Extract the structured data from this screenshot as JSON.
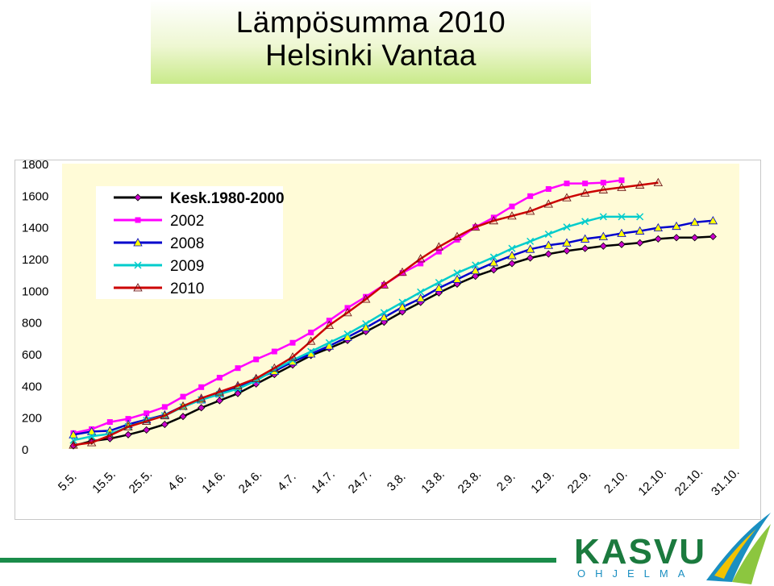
{
  "title": {
    "line1": "Lämpösumma 2010",
    "line2": "Helsinki Vantaa"
  },
  "logo": {
    "word": "KASVU",
    "sub": "OHJELMA"
  },
  "colors": {
    "plot_bg": "#fffbd7",
    "title_gradient": "#c9ea8a",
    "brand_green": "#1b7a3e",
    "brand_blue": "#1a8fc1"
  },
  "chart_data": {
    "type": "line",
    "categories": [
      "5.5.",
      "10.5.",
      "15.5.",
      "20.5.",
      "25.5.",
      "30.5.",
      "4.6.",
      "9.6.",
      "14.6.",
      "19.6.",
      "24.6.",
      "29.6.",
      "4.7.",
      "9.7.",
      "14.7.",
      "19.7.",
      "24.7.",
      "29.7.",
      "3.8.",
      "8.8.",
      "13.8.",
      "18.8.",
      "23.8.",
      "28.8.",
      "2.9.",
      "7.9.",
      "12.9.",
      "17.9.",
      "22.9.",
      "27.9.",
      "2.10.",
      "7.10.",
      "12.10.",
      "17.10.",
      "22.10.",
      "27.10.",
      "31.10."
    ],
    "tick_labels": [
      "5.5.",
      "15.5.",
      "25.5.",
      "4.6.",
      "14.6.",
      "24.6.",
      "4.7.",
      "14.7.",
      "24.7.",
      "3.8.",
      "13.8.",
      "23.8.",
      "2.9.",
      "12.9.",
      "22.9.",
      "2.10.",
      "12.10.",
      "22.10.",
      "31.10."
    ],
    "ylim": [
      0,
      1800
    ],
    "yticks": [
      0,
      200,
      400,
      600,
      800,
      1000,
      1200,
      1400,
      1600,
      1800
    ],
    "grid": false,
    "legend_position": "top-left",
    "series": [
      {
        "name": "Kesk.1980-2000",
        "color": "#000000",
        "marker": "diamond",
        "marker_color": "#cc00cc",
        "values": [
          20,
          50,
          65,
          90,
          120,
          155,
          205,
          260,
          305,
          350,
          410,
          470,
          530,
          590,
          635,
          685,
          740,
          800,
          865,
          925,
          985,
          1040,
          1090,
          1130,
          1170,
          1205,
          1230,
          1250,
          1265,
          1280,
          1290,
          1300,
          1325,
          1333,
          1333,
          1340,
          null
        ]
      },
      {
        "name": "2002",
        "color": "#ff00ff",
        "marker": "square",
        "marker_color": "#ff00ff",
        "values": [
          100,
          125,
          170,
          190,
          225,
          265,
          330,
          390,
          450,
          510,
          565,
          615,
          670,
          735,
          810,
          890,
          960,
          1035,
          1110,
          1170,
          1245,
          1320,
          1400,
          1460,
          1530,
          1595,
          1640,
          1675,
          1675,
          1680,
          1695,
          null,
          null,
          null,
          null,
          null,
          null
        ]
      },
      {
        "name": "2008",
        "color": "#0000cc",
        "marker": "triangle",
        "marker_color": "#ffff00",
        "values": [
          90,
          110,
          115,
          155,
          185,
          215,
          270,
          310,
          350,
          390,
          440,
          490,
          550,
          600,
          650,
          705,
          765,
          830,
          895,
          950,
          1015,
          1070,
          1125,
          1175,
          1220,
          1260,
          1285,
          1300,
          1325,
          1340,
          1360,
          1375,
          1395,
          1405,
          1430,
          1440,
          null
        ]
      },
      {
        "name": "2009",
        "color": "#00cccc",
        "marker": "x",
        "marker_color": "#00cccc",
        "values": [
          55,
          80,
          95,
          140,
          180,
          210,
          265,
          310,
          345,
          380,
          430,
          500,
          560,
          615,
          670,
          725,
          790,
          860,
          925,
          990,
          1050,
          1110,
          1160,
          1210,
          1265,
          1310,
          1355,
          1400,
          1435,
          1465,
          1465,
          1465,
          null,
          null,
          null,
          null,
          null
        ]
      },
      {
        "name": "2010",
        "color": "#cc0000",
        "marker": "triangle",
        "marker_color": "#cc0000",
        "values": [
          25,
          40,
          85,
          140,
          175,
          210,
          270,
          320,
          360,
          400,
          445,
          510,
          580,
          680,
          780,
          860,
          945,
          1035,
          1115,
          1200,
          1275,
          1340,
          1400,
          1440,
          1470,
          1500,
          1545,
          1585,
          1615,
          1635,
          1650,
          1665,
          1680,
          null,
          null,
          null,
          null
        ]
      }
    ]
  }
}
